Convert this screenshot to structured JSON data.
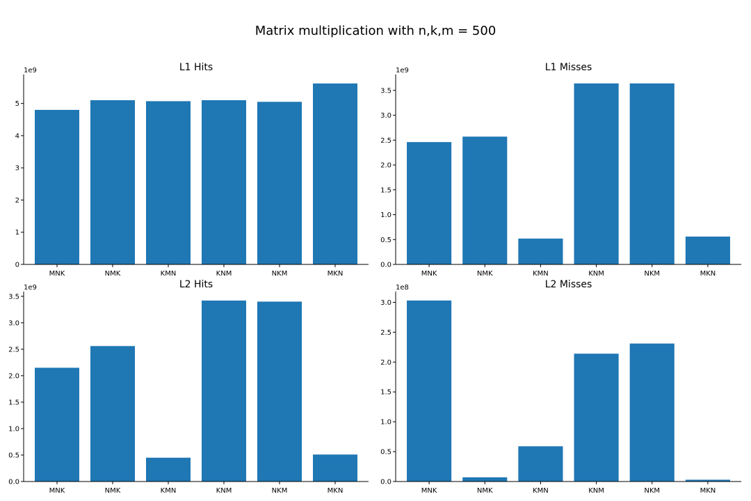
{
  "figure": {
    "title": "Matrix multiplication with n,k,m = 500"
  },
  "colors": {
    "bar": "#1f77b4"
  },
  "chart_data": [
    {
      "type": "bar",
      "title": "L1 Hits",
      "xlabel": "",
      "ylabel": "",
      "categories": [
        "MNK",
        "NMK",
        "KMN",
        "KNM",
        "NKM",
        "MKN"
      ],
      "values": [
        4800000000,
        5100000000,
        5070000000,
        5100000000,
        5050000000,
        5620000000
      ],
      "ylim": [
        0,
        5900000000
      ],
      "yticks": [
        0,
        1,
        2,
        3,
        4,
        5
      ],
      "ytick_labels": [
        "0",
        "1",
        "2",
        "3",
        "4",
        "5"
      ],
      "scale": 1000000000,
      "offset_label": "1e9",
      "grid": false,
      "legend": "none"
    },
    {
      "type": "bar",
      "title": "L1 Misses",
      "xlabel": "",
      "ylabel": "",
      "categories": [
        "MNK",
        "NMK",
        "KMN",
        "KNM",
        "NKM",
        "MKN"
      ],
      "values": [
        2460000000,
        2570000000,
        520000000,
        3640000000,
        3640000000,
        560000000
      ],
      "ylim": [
        0,
        3820000000
      ],
      "yticks": [
        0,
        0.5,
        1,
        1.5,
        2,
        2.5,
        3,
        3.5
      ],
      "ytick_labels": [
        "0.0",
        "0.5",
        "1.0",
        "1.5",
        "2.0",
        "2.5",
        "3.0",
        "3.5"
      ],
      "scale": 1000000000,
      "offset_label": "1e9",
      "grid": false,
      "legend": "none"
    },
    {
      "type": "bar",
      "title": "L2 Hits",
      "xlabel": "",
      "ylabel": "",
      "categories": [
        "MNK",
        "NMK",
        "KMN",
        "KNM",
        "NKM",
        "MKN"
      ],
      "values": [
        2150000000,
        2560000000,
        450000000,
        3420000000,
        3400000000,
        510000000
      ],
      "ylim": [
        0,
        3590000000
      ],
      "yticks": [
        0,
        0.5,
        1,
        1.5,
        2,
        2.5,
        3,
        3.5
      ],
      "ytick_labels": [
        "0.0",
        "0.5",
        "1.0",
        "1.5",
        "2.0",
        "2.5",
        "3.0",
        "3.5"
      ],
      "scale": 1000000000,
      "offset_label": "1e9",
      "grid": false,
      "legend": "none"
    },
    {
      "type": "bar",
      "title": "L2 Misses",
      "xlabel": "",
      "ylabel": "",
      "categories": [
        "MNK",
        "NMK",
        "KMN",
        "KNM",
        "NKM",
        "MKN"
      ],
      "values": [
        303000000,
        7000000,
        59000000,
        214000000,
        231000000,
        3000000
      ],
      "ylim": [
        0,
        318000000
      ],
      "yticks": [
        0,
        0.5,
        1,
        1.5,
        2,
        2.5,
        3
      ],
      "ytick_labels": [
        "0.0",
        "0.5",
        "1.0",
        "1.5",
        "2.0",
        "2.5",
        "3.0"
      ],
      "scale": 100000000,
      "offset_label": "1e8",
      "grid": false,
      "legend": "none"
    }
  ]
}
